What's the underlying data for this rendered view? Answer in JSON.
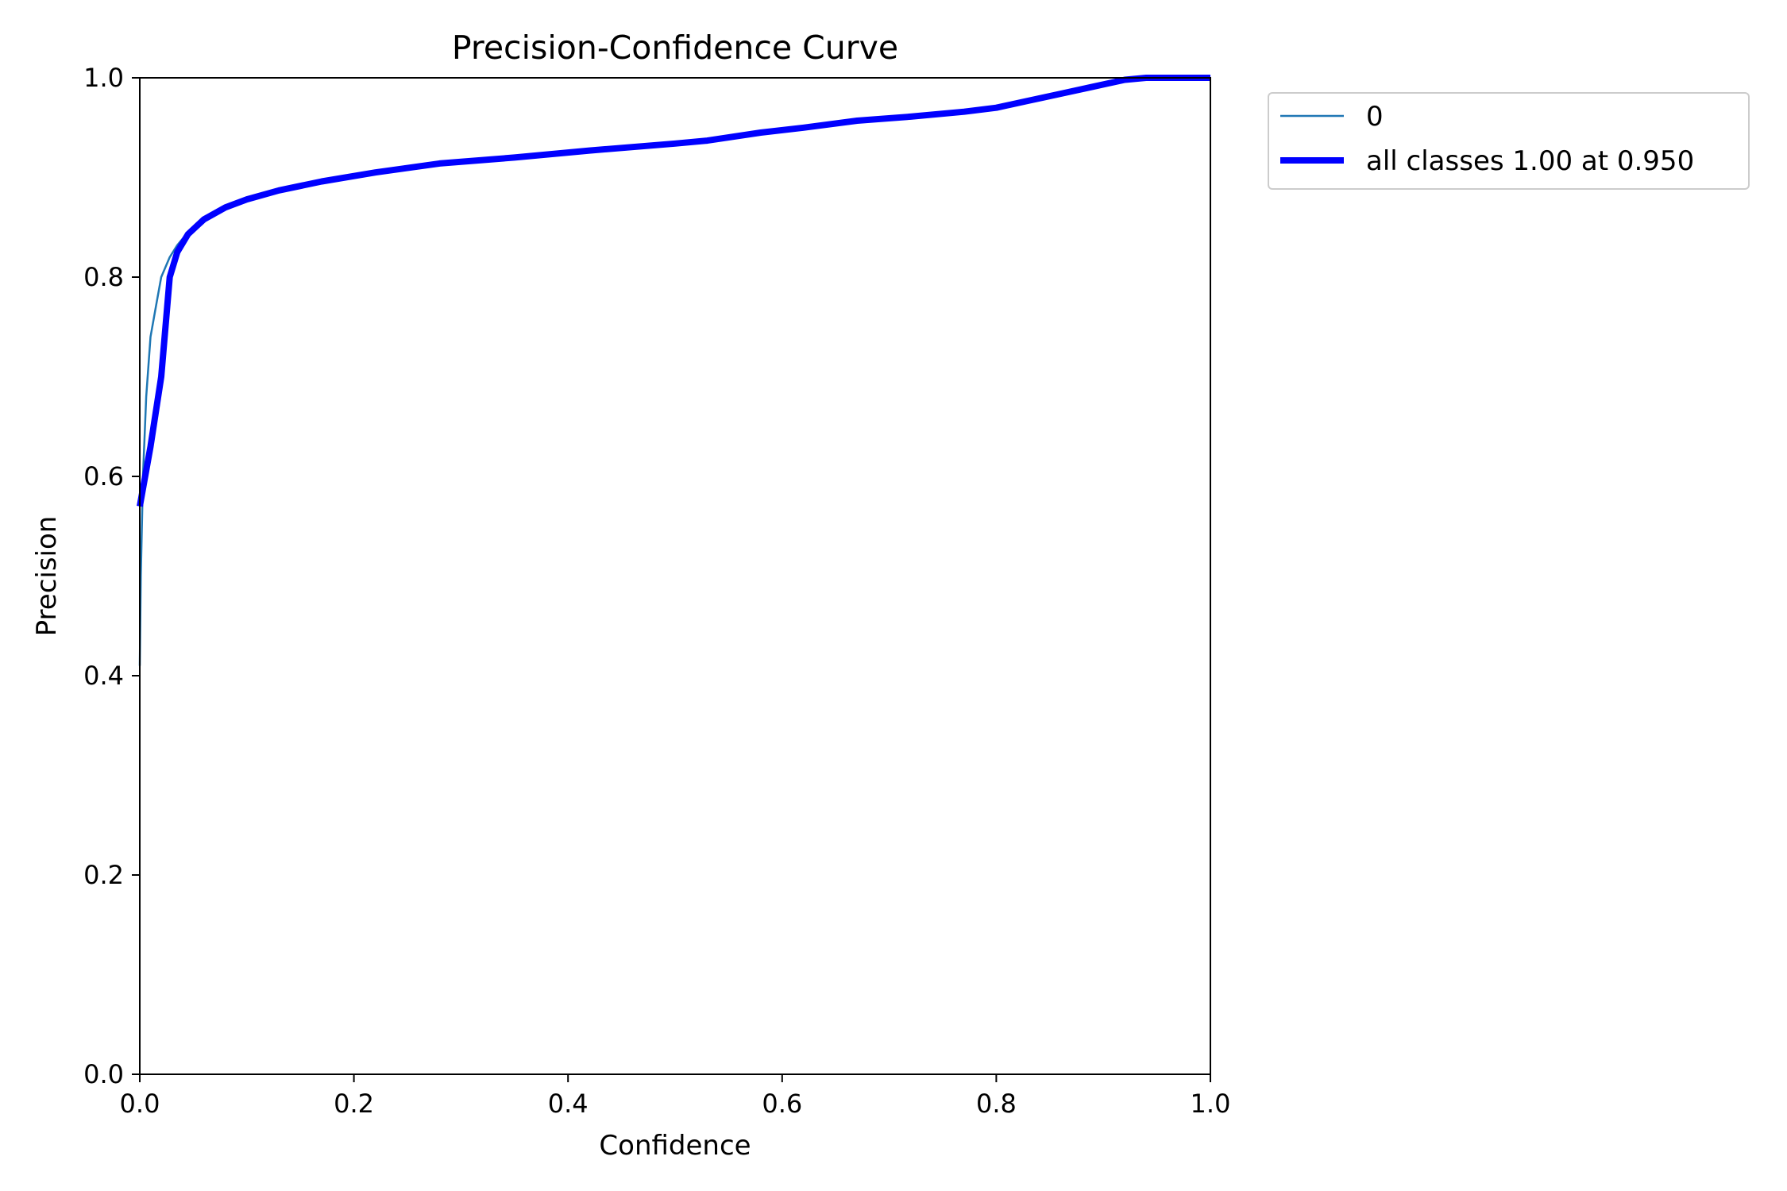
{
  "chart_data": {
    "type": "line",
    "title": "Precision-Confidence Curve",
    "xlabel": "Confidence",
    "ylabel": "Precision",
    "xlim": [
      0,
      1
    ],
    "ylim": [
      0,
      1
    ],
    "grid": false,
    "legend_position": "outside-top-right",
    "x_ticks": [
      "0.0",
      "0.2",
      "0.4",
      "0.6",
      "0.8",
      "1.0"
    ],
    "y_ticks": [
      "0.0",
      "0.2",
      "0.4",
      "0.6",
      "0.8",
      "1.0"
    ],
    "series": [
      {
        "name": "0",
        "color": "#1f77b4",
        "style": "thin",
        "x": [
          0.0,
          0.001,
          0.003,
          0.006,
          0.01,
          0.015,
          0.02,
          0.028,
          0.035,
          0.045,
          0.06,
          0.08,
          0.1,
          0.13,
          0.17,
          0.22,
          0.28,
          0.35,
          0.42,
          0.5,
          0.53,
          0.58,
          0.62,
          0.67,
          0.72,
          0.77,
          0.8,
          0.83,
          0.86,
          0.89,
          0.92,
          0.94,
          0.95,
          0.97,
          1.0
        ],
        "y": [
          0.41,
          0.5,
          0.6,
          0.68,
          0.74,
          0.77,
          0.8,
          0.82,
          0.832,
          0.845,
          0.858,
          0.87,
          0.878,
          0.887,
          0.896,
          0.905,
          0.914,
          0.92,
          0.927,
          0.934,
          0.937,
          0.945,
          0.95,
          0.957,
          0.961,
          0.966,
          0.97,
          0.977,
          0.984,
          0.991,
          0.998,
          1.0,
          1.0,
          1.0,
          1.0
        ]
      },
      {
        "name": "all classes 1.00 at 0.950",
        "color": "#0000ff",
        "style": "thick",
        "x": [
          0.0,
          0.01,
          0.02,
          0.028,
          0.035,
          0.045,
          0.06,
          0.08,
          0.1,
          0.13,
          0.17,
          0.22,
          0.28,
          0.35,
          0.42,
          0.5,
          0.53,
          0.58,
          0.62,
          0.67,
          0.72,
          0.77,
          0.8,
          0.83,
          0.86,
          0.89,
          0.92,
          0.94,
          0.95,
          0.97,
          1.0
        ],
        "y": [
          0.57,
          0.63,
          0.7,
          0.8,
          0.825,
          0.843,
          0.858,
          0.87,
          0.878,
          0.887,
          0.896,
          0.905,
          0.914,
          0.92,
          0.927,
          0.934,
          0.937,
          0.945,
          0.95,
          0.957,
          0.961,
          0.966,
          0.97,
          0.977,
          0.984,
          0.991,
          0.998,
          1.0,
          1.0,
          1.0,
          1.0
        ]
      }
    ]
  }
}
